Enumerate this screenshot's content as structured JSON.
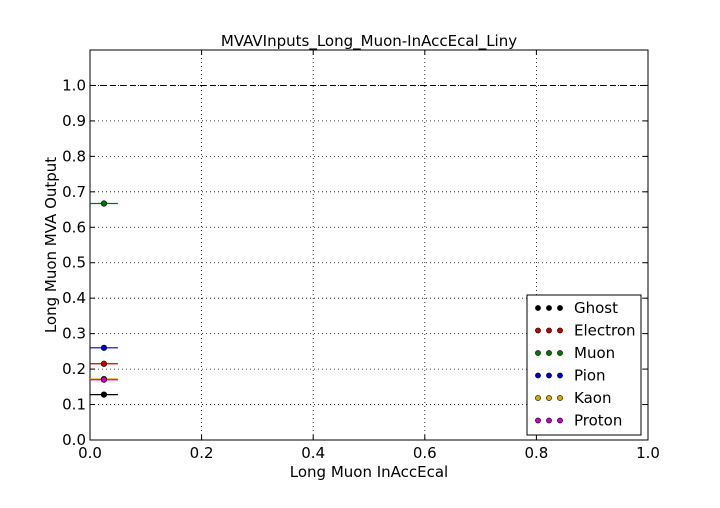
{
  "chart_data": {
    "type": "scatter",
    "title": "MVAVInputs_Long_Muon-InAccEcal_Liny",
    "xlabel": "Long Muon InAccEcal",
    "ylabel": "Long Muon MVA Output",
    "xlim": [
      0.0,
      1.0
    ],
    "ylim": [
      0.0,
      1.1
    ],
    "xticks": [
      "0.0",
      "0.2",
      "0.4",
      "0.6",
      "0.8",
      "1.0"
    ],
    "yticks": [
      "0.0",
      "0.1",
      "0.2",
      "0.3",
      "0.4",
      "0.5",
      "0.6",
      "0.7",
      "0.8",
      "0.9",
      "1.0"
    ],
    "grid": true,
    "reference_line": {
      "y": 1.0,
      "style": "dashed",
      "color": "#000000"
    },
    "legend_position": "lower-right",
    "series": [
      {
        "name": "Ghost",
        "color": "#000000",
        "points": [
          {
            "x": 0.025,
            "y": 0.128,
            "xerr": 0.025
          }
        ]
      },
      {
        "name": "Electron",
        "color": "#cc0000",
        "points": [
          {
            "x": 0.025,
            "y": 0.215,
            "xerr": 0.025
          }
        ]
      },
      {
        "name": "Muon",
        "color": "#007700",
        "points": [
          {
            "x": 0.025,
            "y": 0.667,
            "xerr": 0.025
          }
        ]
      },
      {
        "name": "Pion",
        "color": "#0000cc",
        "points": [
          {
            "x": 0.025,
            "y": 0.26,
            "xerr": 0.025
          }
        ]
      },
      {
        "name": "Kaon",
        "color": "#ddaa00",
        "points": [
          {
            "x": 0.025,
            "y": 0.172,
            "xerr": 0.025
          }
        ]
      },
      {
        "name": "Proton",
        "color": "#cc00cc",
        "points": [
          {
            "x": 0.025,
            "y": 0.17,
            "xerr": 0.025
          }
        ]
      }
    ]
  }
}
